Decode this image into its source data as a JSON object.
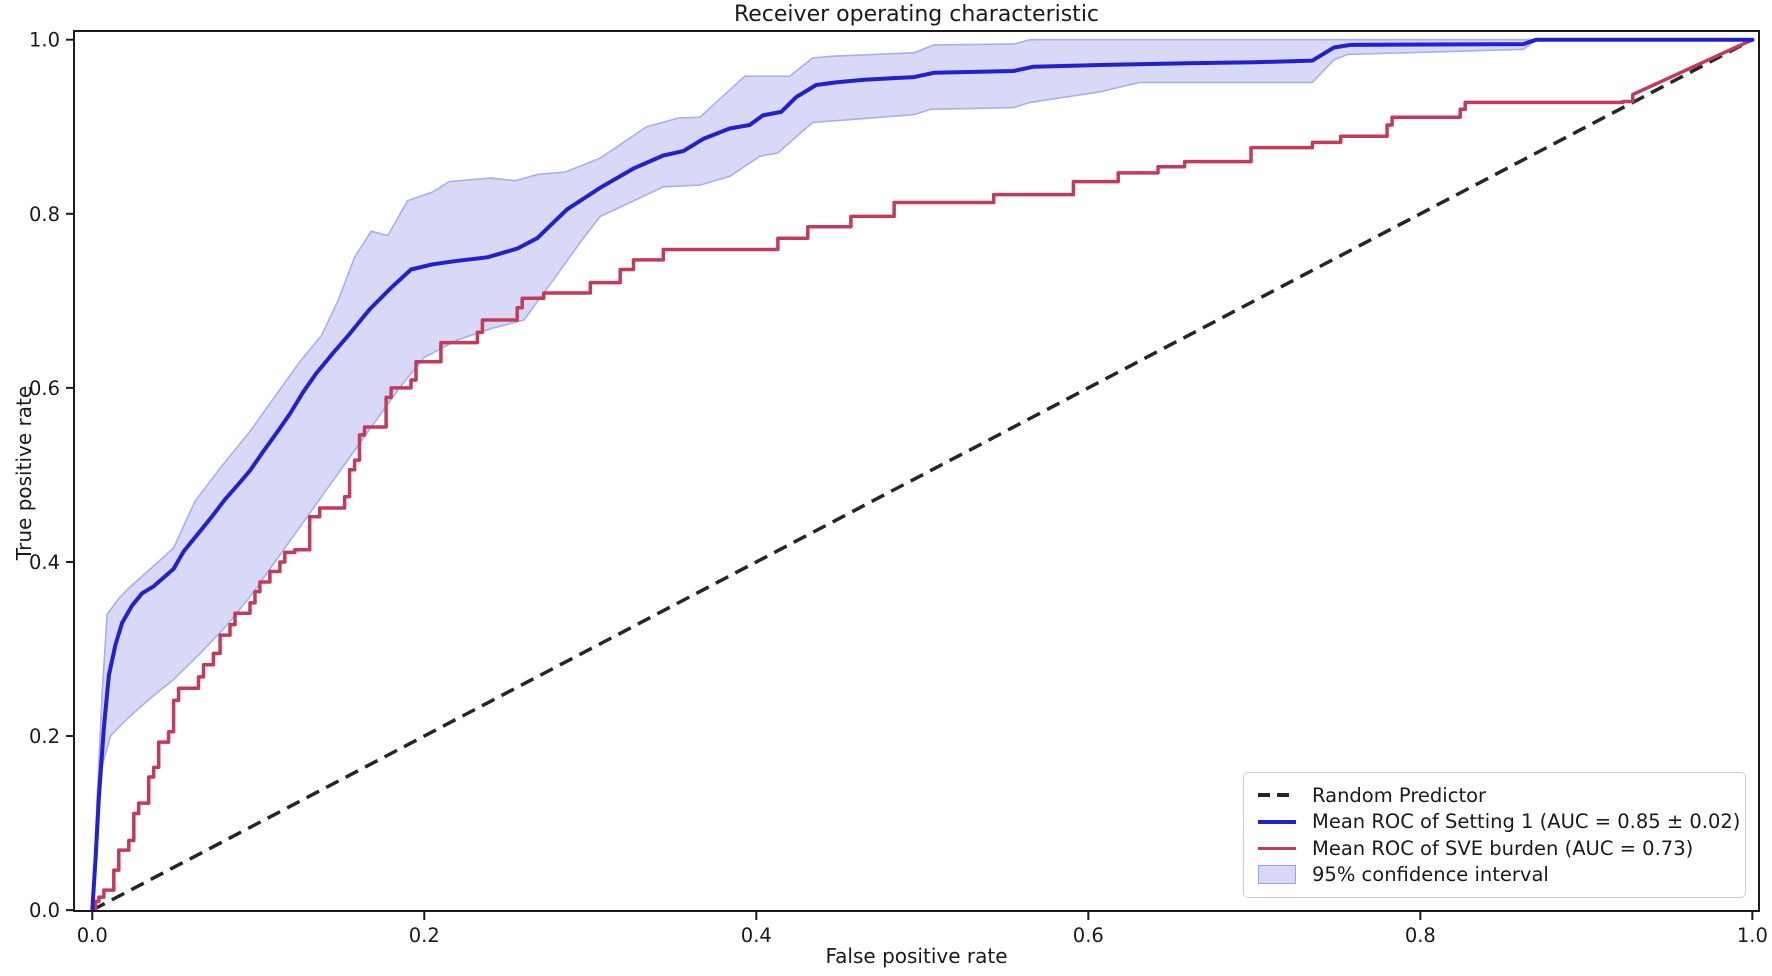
{
  "chart_data": {
    "type": "line",
    "title": "Receiver operating characteristic",
    "xlabel": "False positive rate",
    "ylabel": "True positive rate",
    "x_ticks": [
      0.0,
      0.2,
      0.4,
      0.6,
      0.8,
      1.0
    ],
    "y_ticks": [
      0.0,
      0.2,
      0.4,
      0.6,
      0.8,
      1.0
    ],
    "tick_format": [
      "0.0",
      "0.2",
      "0.4",
      "0.6",
      "0.8",
      "1.0"
    ],
    "xlim": [
      -0.011,
      1.004
    ],
    "ylim": [
      -0.001,
      1.01
    ],
    "grid": false,
    "legend_position": "lower right",
    "colors": {
      "random": "#262626",
      "setting1": "#2121cf",
      "sve": "#c43a58",
      "band_fill": "#d7d9f7",
      "band_edge": "#a9aeee",
      "axis": "#1a1a1a"
    },
    "series": [
      {
        "name": "Random Predictor",
        "style": "dashed",
        "points": [
          [
            0,
            0
          ],
          [
            1,
            1
          ]
        ]
      },
      {
        "name": "Mean ROC of Setting 1 (AUC = 0.85 ± 0.02)",
        "style": "solid",
        "points": [
          [
            0,
            0
          ],
          [
            0.002,
            0.06
          ],
          [
            0.004,
            0.13
          ],
          [
            0.007,
            0.21
          ],
          [
            0.01,
            0.27
          ],
          [
            0.014,
            0.305
          ],
          [
            0.018,
            0.33
          ],
          [
            0.024,
            0.35
          ],
          [
            0.03,
            0.364
          ],
          [
            0.037,
            0.372
          ],
          [
            0.043,
            0.382
          ],
          [
            0.049,
            0.392
          ],
          [
            0.055,
            0.412
          ],
          [
            0.064,
            0.433
          ],
          [
            0.072,
            0.452
          ],
          [
            0.08,
            0.472
          ],
          [
            0.087,
            0.487
          ],
          [
            0.095,
            0.505
          ],
          [
            0.103,
            0.527
          ],
          [
            0.111,
            0.548
          ],
          [
            0.119,
            0.57
          ],
          [
            0.127,
            0.595
          ],
          [
            0.135,
            0.617
          ],
          [
            0.145,
            0.64
          ],
          [
            0.155,
            0.662
          ],
          [
            0.167,
            0.69
          ],
          [
            0.18,
            0.715
          ],
          [
            0.192,
            0.736
          ],
          [
            0.205,
            0.742
          ],
          [
            0.22,
            0.746
          ],
          [
            0.238,
            0.75
          ],
          [
            0.256,
            0.76
          ],
          [
            0.268,
            0.772
          ],
          [
            0.286,
            0.805
          ],
          [
            0.306,
            0.83
          ],
          [
            0.326,
            0.852
          ],
          [
            0.344,
            0.867
          ],
          [
            0.356,
            0.872
          ],
          [
            0.368,
            0.886
          ],
          [
            0.384,
            0.898
          ],
          [
            0.396,
            0.902
          ],
          [
            0.404,
            0.913
          ],
          [
            0.415,
            0.917
          ],
          [
            0.424,
            0.934
          ],
          [
            0.436,
            0.948
          ],
          [
            0.448,
            0.951
          ],
          [
            0.465,
            0.954
          ],
          [
            0.495,
            0.957
          ],
          [
            0.507,
            0.962
          ],
          [
            0.555,
            0.964
          ],
          [
            0.567,
            0.969
          ],
          [
            0.61,
            0.971
          ],
          [
            0.66,
            0.973
          ],
          [
            0.7,
            0.974
          ],
          [
            0.735,
            0.976
          ],
          [
            0.748,
            0.991
          ],
          [
            0.758,
            0.994
          ],
          [
            0.862,
            0.995
          ],
          [
            0.87,
            1
          ],
          [
            1,
            1
          ]
        ]
      },
      {
        "name": "Mean ROC of SVE burden (AUC = 0.73)",
        "style": "step",
        "points": [
          [
            0,
            0
          ],
          [
            0.002,
            0.01
          ],
          [
            0.004,
            0.015
          ],
          [
            0.007,
            0.023
          ],
          [
            0.013,
            0.046
          ],
          [
            0.016,
            0.069
          ],
          [
            0.022,
            0.08
          ],
          [
            0.025,
            0.111
          ],
          [
            0.028,
            0.123
          ],
          [
            0.034,
            0.153
          ],
          [
            0.037,
            0.164
          ],
          [
            0.04,
            0.193
          ],
          [
            0.046,
            0.205
          ],
          [
            0.049,
            0.241
          ],
          [
            0.052,
            0.255
          ],
          [
            0.064,
            0.268
          ],
          [
            0.067,
            0.282
          ],
          [
            0.073,
            0.295
          ],
          [
            0.077,
            0.316
          ],
          [
            0.083,
            0.328
          ],
          [
            0.086,
            0.341
          ],
          [
            0.095,
            0.353
          ],
          [
            0.098,
            0.366
          ],
          [
            0.101,
            0.377
          ],
          [
            0.107,
            0.389
          ],
          [
            0.113,
            0.4
          ],
          [
            0.116,
            0.411
          ],
          [
            0.122,
            0.414
          ],
          [
            0.131,
            0.452
          ],
          [
            0.137,
            0.462
          ],
          [
            0.152,
            0.475
          ],
          [
            0.155,
            0.506
          ],
          [
            0.158,
            0.517
          ],
          [
            0.161,
            0.546
          ],
          [
            0.164,
            0.555
          ],
          [
            0.177,
            0.589
          ],
          [
            0.18,
            0.6
          ],
          [
            0.192,
            0.609
          ],
          [
            0.195,
            0.63
          ],
          [
            0.21,
            0.652
          ],
          [
            0.232,
            0.664
          ],
          [
            0.235,
            0.678
          ],
          [
            0.256,
            0.692
          ],
          [
            0.259,
            0.703
          ],
          [
            0.272,
            0.709
          ],
          [
            0.3,
            0.721
          ],
          [
            0.318,
            0.736
          ],
          [
            0.326,
            0.747
          ],
          [
            0.344,
            0.759
          ],
          [
            0.413,
            0.772
          ],
          [
            0.431,
            0.785
          ],
          [
            0.457,
            0.797
          ],
          [
            0.483,
            0.813
          ],
          [
            0.543,
            0.822
          ],
          [
            0.591,
            0.837
          ],
          [
            0.618,
            0.847
          ],
          [
            0.642,
            0.854
          ],
          [
            0.658,
            0.86
          ],
          [
            0.698,
            0.876
          ],
          [
            0.735,
            0.882
          ],
          [
            0.752,
            0.889
          ],
          [
            0.78,
            0.902
          ],
          [
            0.783,
            0.911
          ],
          [
            0.824,
            0.92
          ],
          [
            0.827,
            0.928
          ],
          [
            0.922,
            0.929
          ],
          [
            0.928,
            0.937
          ],
          [
            1,
            1
          ]
        ]
      },
      {
        "name": "95% confidence interval",
        "style": "band",
        "upper": [
          [
            0,
            0
          ],
          [
            0.003,
            0.13
          ],
          [
            0.006,
            0.25
          ],
          [
            0.009,
            0.34
          ],
          [
            0.016,
            0.358
          ],
          [
            0.022,
            0.37
          ],
          [
            0.035,
            0.392
          ],
          [
            0.049,
            0.416
          ],
          [
            0.062,
            0.47
          ],
          [
            0.078,
            0.51
          ],
          [
            0.095,
            0.55
          ],
          [
            0.11,
            0.59
          ],
          [
            0.125,
            0.63
          ],
          [
            0.138,
            0.66
          ],
          [
            0.148,
            0.7
          ],
          [
            0.158,
            0.75
          ],
          [
            0.168,
            0.78
          ],
          [
            0.178,
            0.775
          ],
          [
            0.19,
            0.815
          ],
          [
            0.205,
            0.825
          ],
          [
            0.215,
            0.837
          ],
          [
            0.24,
            0.841
          ],
          [
            0.255,
            0.838
          ],
          [
            0.268,
            0.845
          ],
          [
            0.285,
            0.848
          ],
          [
            0.306,
            0.864
          ],
          [
            0.334,
            0.9
          ],
          [
            0.353,
            0.91
          ],
          [
            0.366,
            0.911
          ],
          [
            0.393,
            0.958
          ],
          [
            0.42,
            0.958
          ],
          [
            0.434,
            0.979
          ],
          [
            0.446,
            0.981
          ],
          [
            0.495,
            0.985
          ],
          [
            0.507,
            0.994
          ],
          [
            0.555,
            0.995
          ],
          [
            0.565,
            1
          ],
          [
            0.87,
            1
          ]
        ],
        "lower": [
          [
            0,
            0
          ],
          [
            0.005,
            0.16
          ],
          [
            0.011,
            0.2
          ],
          [
            0.017,
            0.212
          ],
          [
            0.024,
            0.225
          ],
          [
            0.036,
            0.245
          ],
          [
            0.049,
            0.265
          ],
          [
            0.065,
            0.295
          ],
          [
            0.08,
            0.325
          ],
          [
            0.095,
            0.36
          ],
          [
            0.11,
            0.4
          ],
          [
            0.125,
            0.44
          ],
          [
            0.14,
            0.48
          ],
          [
            0.155,
            0.52
          ],
          [
            0.17,
            0.56
          ],
          [
            0.185,
            0.6
          ],
          [
            0.2,
            0.635
          ],
          [
            0.22,
            0.655
          ],
          [
            0.24,
            0.668
          ],
          [
            0.26,
            0.678
          ],
          [
            0.28,
            0.73
          ],
          [
            0.295,
            0.77
          ],
          [
            0.306,
            0.797
          ],
          [
            0.324,
            0.813
          ],
          [
            0.344,
            0.831
          ],
          [
            0.366,
            0.833
          ],
          [
            0.384,
            0.843
          ],
          [
            0.402,
            0.866
          ],
          [
            0.413,
            0.87
          ],
          [
            0.422,
            0.885
          ],
          [
            0.434,
            0.905
          ],
          [
            0.455,
            0.908
          ],
          [
            0.495,
            0.914
          ],
          [
            0.505,
            0.92
          ],
          [
            0.555,
            0.922
          ],
          [
            0.565,
            0.928
          ],
          [
            0.607,
            0.94
          ],
          [
            0.631,
            0.951
          ],
          [
            0.735,
            0.951
          ],
          [
            0.748,
            0.977
          ],
          [
            0.756,
            0.983
          ],
          [
            0.862,
            0.989
          ],
          [
            0.87,
            1
          ]
        ]
      }
    ],
    "legend": {
      "items": [
        {
          "label": "Random Predictor",
          "swatch": "dashed-line"
        },
        {
          "label": "Mean ROC of Setting 1 (AUC = 0.85 ± 0.02)",
          "swatch": "blue-line"
        },
        {
          "label": "Mean ROC of SVE burden (AUC = 0.73)",
          "swatch": "red-line"
        },
        {
          "label": "95% confidence interval",
          "swatch": "band-patch"
        }
      ]
    }
  }
}
